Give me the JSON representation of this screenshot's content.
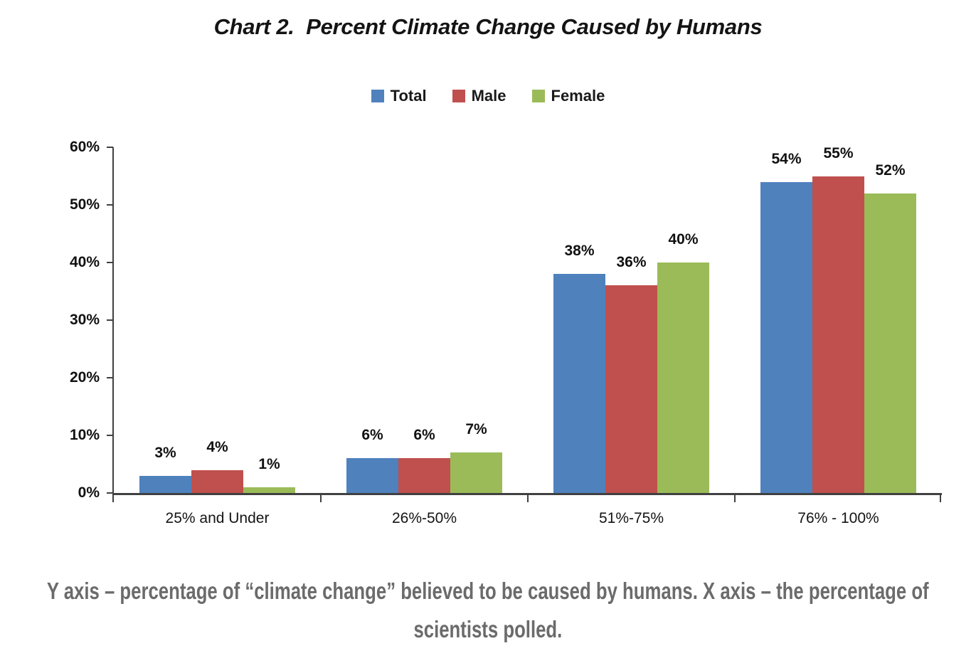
{
  "chart_data": {
    "type": "bar",
    "title": "Chart 2.  Percent Climate Change Caused by Humans",
    "categories": [
      "25% and Under",
      "26%-50%",
      "51%-75%",
      "76% - 100%"
    ],
    "series": [
      {
        "name": "Total",
        "color": "#4F81BD",
        "values": [
          3,
          6,
          38,
          54
        ]
      },
      {
        "name": "Male",
        "color": "#C0504D",
        "values": [
          4,
          6,
          36,
          55
        ]
      },
      {
        "name": "Female",
        "color": "#9BBB59",
        "values": [
          1,
          7,
          40,
          52
        ]
      }
    ],
    "value_suffix": "%",
    "ylim": [
      0,
      60
    ],
    "ytick_step": 10,
    "ytick_labels": [
      "0%",
      "10%",
      "20%",
      "30%",
      "40%",
      "50%",
      "60%"
    ],
    "grid": false,
    "legend_position": "top",
    "data_labels_shown": true,
    "axis_color": "#404040",
    "text_color": "#111111"
  },
  "caption": {
    "line1": "Y axis – percentage of “climate change” believed to be caused by humans. X axis – the percentage of",
    "line2": "scientists polled."
  }
}
